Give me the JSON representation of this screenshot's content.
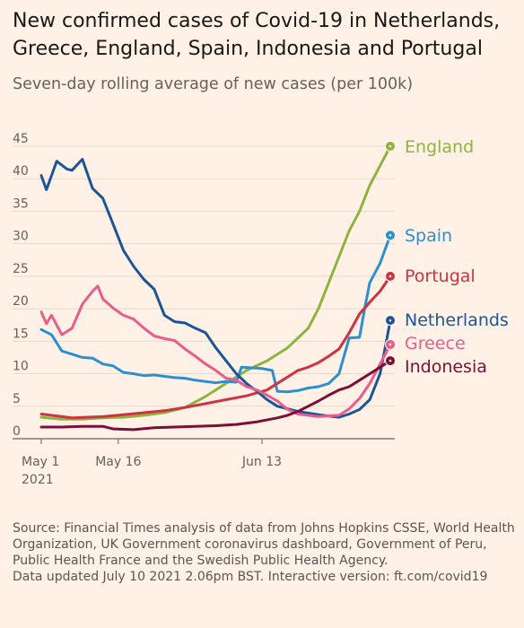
{
  "title": "New confirmed cases of Covid-19 in Netherlands, Greece, England, Spain, Indonesia and Portugal",
  "subtitle": "Seven-day rolling average of new cases (per 100k)",
  "source": {
    "line1": "Source: Financial Times analysis of data from Johns Hopkins CSSE, World Health Organization, UK Government coronavirus dashboard, Government of Peru, Public Health France and the Swedish Public Health Agency.",
    "line2": "Data updated July 10 2021 2.06pm BST. Interactive version: ft.com/covid19"
  },
  "chart_data": {
    "type": "line",
    "x_axis": {
      "ticks": [
        {
          "day": 0,
          "label": "May 1",
          "sublabel": "2021"
        },
        {
          "day": 15,
          "label": "May 16"
        },
        {
          "day": 43,
          "label": "Jun 13"
        }
      ],
      "range": [
        0,
        70
      ]
    },
    "y_axis": {
      "ticks": [
        0,
        5,
        10,
        15,
        20,
        25,
        30,
        35,
        40,
        45
      ],
      "range": [
        0,
        46
      ]
    },
    "grid": true,
    "series": [
      {
        "name": "England",
        "color": "#8db43e",
        "points": [
          [
            0,
            3.3
          ],
          [
            4,
            3
          ],
          [
            8,
            3
          ],
          [
            12,
            3.2
          ],
          [
            16,
            3.3
          ],
          [
            20,
            3.6
          ],
          [
            24,
            4
          ],
          [
            28,
            4.8
          ],
          [
            32,
            6.5
          ],
          [
            36,
            8.5
          ],
          [
            40,
            10.5
          ],
          [
            44,
            12
          ],
          [
            48,
            14
          ],
          [
            52,
            17
          ],
          [
            54,
            20
          ],
          [
            56,
            24
          ],
          [
            58,
            28
          ],
          [
            60,
            32
          ],
          [
            62,
            35
          ],
          [
            64,
            39
          ],
          [
            66,
            42
          ],
          [
            68,
            45
          ]
        ]
      },
      {
        "name": "Spain",
        "color": "#2b90cf",
        "points": [
          [
            0,
            16.8
          ],
          [
            2,
            16
          ],
          [
            4,
            13.5
          ],
          [
            6,
            13
          ],
          [
            8,
            12.5
          ],
          [
            10,
            12.4
          ],
          [
            12,
            11.5
          ],
          [
            14,
            11.2
          ],
          [
            16,
            10.2
          ],
          [
            18,
            10
          ],
          [
            20,
            9.7
          ],
          [
            22,
            9.8
          ],
          [
            24,
            9.6
          ],
          [
            26,
            9.4
          ],
          [
            28,
            9.3
          ],
          [
            30,
            9
          ],
          [
            32,
            8.8
          ],
          [
            34,
            8.6
          ],
          [
            36,
            8.8
          ],
          [
            38,
            8.7
          ],
          [
            39,
            11
          ],
          [
            41,
            10.9
          ],
          [
            43,
            10.8
          ],
          [
            45,
            10.5
          ],
          [
            46,
            7.3
          ],
          [
            48,
            7.2
          ],
          [
            50,
            7.4
          ],
          [
            52,
            7.8
          ],
          [
            54,
            8
          ],
          [
            56,
            8.5
          ],
          [
            58,
            10
          ],
          [
            60,
            15.5
          ],
          [
            62,
            15.6
          ],
          [
            63,
            20
          ],
          [
            64,
            24
          ],
          [
            66,
            27
          ],
          [
            68,
            31.3
          ]
        ]
      },
      {
        "name": "Portugal",
        "color": "#cc3343",
        "points": [
          [
            0,
            3.8
          ],
          [
            6,
            3.2
          ],
          [
            12,
            3.4
          ],
          [
            16,
            3.7
          ],
          [
            20,
            4
          ],
          [
            24,
            4.3
          ],
          [
            28,
            4.8
          ],
          [
            32,
            5.4
          ],
          [
            36,
            6
          ],
          [
            40,
            6.6
          ],
          [
            44,
            7.5
          ],
          [
            46,
            8.5
          ],
          [
            48,
            9.5
          ],
          [
            50,
            10.5
          ],
          [
            52,
            11
          ],
          [
            54,
            11.7
          ],
          [
            56,
            12.7
          ],
          [
            58,
            13.8
          ],
          [
            60,
            16.3
          ],
          [
            62,
            19.2
          ],
          [
            64,
            21
          ],
          [
            66,
            22.7
          ],
          [
            68,
            25
          ]
        ]
      },
      {
        "name": "Netherlands",
        "color": "#1b5596",
        "points": [
          [
            0,
            40.5
          ],
          [
            1,
            38.3
          ],
          [
            3,
            42.7
          ],
          [
            5,
            41.5
          ],
          [
            6,
            41.3
          ],
          [
            8,
            43
          ],
          [
            10,
            38.5
          ],
          [
            12,
            37
          ],
          [
            14,
            33
          ],
          [
            16,
            29
          ],
          [
            18,
            26.5
          ],
          [
            20,
            24.5
          ],
          [
            22,
            23
          ],
          [
            24,
            19
          ],
          [
            26,
            18
          ],
          [
            28,
            17.8
          ],
          [
            30,
            17
          ],
          [
            32,
            16.3
          ],
          [
            34,
            14
          ],
          [
            36,
            12
          ],
          [
            38,
            10
          ],
          [
            40,
            8.5
          ],
          [
            42,
            7.3
          ],
          [
            44,
            6
          ],
          [
            46,
            5
          ],
          [
            50,
            4.2
          ],
          [
            54,
            3.7
          ],
          [
            58,
            3.3
          ],
          [
            60,
            3.8
          ],
          [
            62,
            4.5
          ],
          [
            64,
            6
          ],
          [
            66,
            10
          ],
          [
            67,
            14
          ],
          [
            68,
            18.2
          ]
        ]
      },
      {
        "name": "Greece",
        "color": "#e95d8c",
        "points": [
          [
            0,
            19.5
          ],
          [
            1,
            17.7
          ],
          [
            2,
            19
          ],
          [
            4,
            16
          ],
          [
            6,
            17
          ],
          [
            8,
            20.7
          ],
          [
            10,
            22.7
          ],
          [
            11,
            23.5
          ],
          [
            12,
            21.5
          ],
          [
            14,
            20.1
          ],
          [
            16,
            19
          ],
          [
            18,
            18.4
          ],
          [
            20,
            17
          ],
          [
            22,
            15.8
          ],
          [
            24,
            15.4
          ],
          [
            26,
            15.1
          ],
          [
            28,
            13.8
          ],
          [
            30,
            12.7
          ],
          [
            32,
            11.5
          ],
          [
            34,
            10.5
          ],
          [
            36,
            9.3
          ],
          [
            38,
            9
          ],
          [
            40,
            8
          ],
          [
            42,
            7.5
          ],
          [
            44,
            6.7
          ],
          [
            46,
            5.8
          ],
          [
            48,
            4.5
          ],
          [
            50,
            3.8
          ],
          [
            54,
            3.4
          ],
          [
            58,
            3.6
          ],
          [
            60,
            4.6
          ],
          [
            62,
            6.2
          ],
          [
            64,
            8.5
          ],
          [
            66,
            11.5
          ],
          [
            68,
            14.5
          ]
        ]
      },
      {
        "name": "Indonesia",
        "color": "#7d0e36",
        "points": [
          [
            0,
            1.8
          ],
          [
            4,
            1.8
          ],
          [
            8,
            1.9
          ],
          [
            12,
            1.9
          ],
          [
            14,
            1.5
          ],
          [
            18,
            1.4
          ],
          [
            22,
            1.7
          ],
          [
            26,
            1.8
          ],
          [
            30,
            1.9
          ],
          [
            34,
            2
          ],
          [
            38,
            2.2
          ],
          [
            42,
            2.6
          ],
          [
            46,
            3.2
          ],
          [
            48,
            3.6
          ],
          [
            50,
            4.2
          ],
          [
            52,
            5
          ],
          [
            54,
            5.8
          ],
          [
            56,
            6.7
          ],
          [
            58,
            7.5
          ],
          [
            60,
            8
          ],
          [
            62,
            9
          ],
          [
            64,
            10
          ],
          [
            66,
            11
          ],
          [
            68,
            12
          ]
        ]
      }
    ]
  }
}
